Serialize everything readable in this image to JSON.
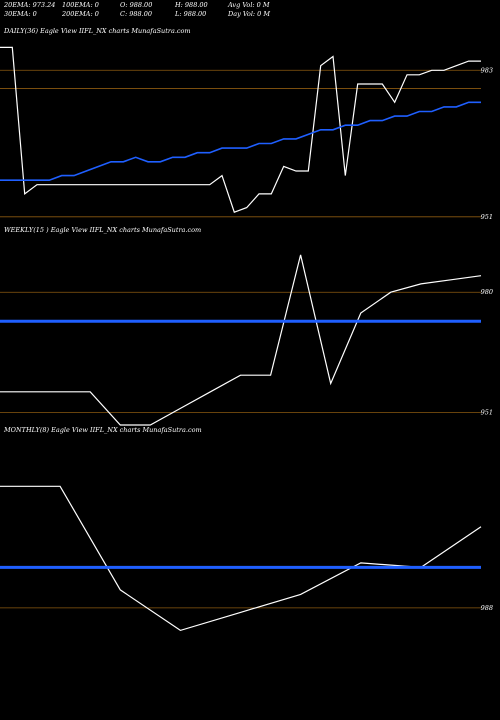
{
  "header": {
    "row1": {
      "ema20": "20EMA: 973.24",
      "ema100": "100EMA: 0",
      "open": "O: 988.00",
      "high": "H: 988.00",
      "avg_vol": "Avg Vol: 0  M"
    },
    "row2": {
      "ema30": "30EMA: 0",
      "ema200": "200EMA: 0",
      "close": "C: 988.00",
      "low": "L: 988.00",
      "day_vol": "Day Vol: 0  M"
    }
  },
  "colors": {
    "background": "#000000",
    "price_line": "#ffffff",
    "ema_line": "#1f5fff",
    "grid_line": "#8b5a10"
  },
  "chart_data": [
    {
      "type": "line",
      "title": "DAILY(36) Eagle   View  IIFL_NX  charts MunafaSutra.com",
      "ylim": [
        950.3,
        990.7
      ],
      "yticks": [
        983,
        951
      ],
      "gridlines": [
        983,
        979,
        951
      ],
      "series": [
        {
          "role": "price",
          "values": [
            988,
            988,
            956,
            958,
            958,
            958,
            958,
            958,
            958,
            958,
            958,
            958,
            958,
            958,
            958,
            958,
            958,
            958,
            960,
            952,
            953,
            956,
            956,
            962,
            961,
            961,
            984,
            986,
            960,
            980,
            980,
            980,
            976,
            982,
            982,
            983,
            983,
            984,
            985,
            985
          ]
        },
        {
          "role": "ema",
          "values": [
            959,
            959,
            959,
            959,
            959,
            960,
            960,
            961,
            962,
            963,
            963,
            964,
            963,
            963,
            964,
            964,
            965,
            965,
            966,
            966,
            966,
            967,
            967,
            968,
            968,
            969,
            970,
            970,
            971,
            971,
            972,
            972,
            973,
            973,
            974,
            974,
            975,
            975,
            976,
            976
          ]
        }
      ]
    },
    {
      "type": "line",
      "title": "WEEKLY(15                   ) Eagle   View  IIFL_NX  charts MunafaSutra.com",
      "ylim": [
        949.2,
        993.8
      ],
      "yticks": [
        980,
        951
      ],
      "gridlines": [
        980,
        951
      ],
      "series": [
        {
          "role": "price",
          "values": [
            956,
            956,
            956,
            956,
            948,
            948,
            952,
            956,
            960,
            960,
            989,
            958,
            975,
            980,
            982,
            983,
            984
          ]
        },
        {
          "role": "ema",
          "values": [
            973,
            973,
            973,
            973,
            973,
            973,
            973,
            973,
            973,
            973,
            973,
            973,
            973,
            973,
            973,
            973,
            973
          ]
        }
      ]
    },
    {
      "type": "line",
      "title": "MONTHLY(8) Eagle   View  IIFL_NX  charts MunafaSutra.com",
      "ylim": [
        963.1,
        1026.4
      ],
      "yticks": [
        988
      ],
      "gridlines": [
        988
      ],
      "series": [
        {
          "role": "price",
          "values": [
            1015,
            1015,
            992,
            983,
            987,
            991,
            998,
            997,
            1006
          ]
        },
        {
          "role": "ema",
          "values": [
            997,
            997,
            997,
            997,
            997,
            997,
            997,
            997,
            997
          ]
        }
      ]
    }
  ]
}
